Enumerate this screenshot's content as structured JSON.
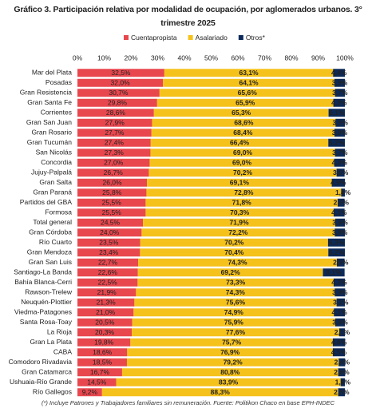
{
  "chart_data": {
    "type": "stacked-bar-horizontal",
    "title": "Gráfico 3. Participación relativa por modalidad de ocupación, por aglomerados urbanos. 3° trimestre 2025",
    "footnote": "(*) Incluye Patrones y Trabajadores familiares sin remuneración. Fuente: Politikon Chaco en base EPH-INDEC",
    "categories": [
      "Mar del Plata",
      "Posadas",
      "Gran Resistencia",
      "Gran Santa Fe",
      "Corrientes",
      "Gran San Juan",
      "Gran Rosario",
      "Gran Tucumán",
      "San Nicolás",
      "Concordia",
      "Jujuy-Palpalá",
      "Gran Salta",
      "Gran Paraná",
      "Partidos del GBA",
      "Formosa",
      "Total general",
      "Gran Córdoba",
      "Río Cuarto",
      "Gran Mendoza",
      "Gran San Luis",
      "Santiago-La Banda",
      "Bahía Blanca-Cerri",
      "Rawson-Trelew",
      "Neuquén-Plottier",
      "Viedma-Patagones",
      "Santa Rosa-Toay",
      "La Rioja",
      "Gran La Plata",
      "CABA",
      "Comodoro Rivadavia",
      "Gran Catamarca",
      "Ushuaia-Río Grande",
      "Río Gallegos"
    ],
    "series": [
      {
        "name": "Cuentapropista",
        "color": "#e8474e",
        "values": [
          32.5,
          32.0,
          30.7,
          29.8,
          28.6,
          27.9,
          27.7,
          27.4,
          27.3,
          27.0,
          26.7,
          26.0,
          25.8,
          25.5,
          25.5,
          24.5,
          24.0,
          23.5,
          23.4,
          22.7,
          22.6,
          22.5,
          21.9,
          21.3,
          21.0,
          20.5,
          20.3,
          19.8,
          18.6,
          18.5,
          16.7,
          14.5,
          9.2
        ],
        "value_labels": [
          "32,5%",
          "32,0%",
          "30,7%",
          "29,8%",
          "28,6%",
          "27,9%",
          "27,7%",
          "27,4%",
          "27,3%",
          "27,0%",
          "26,7%",
          "26,0%",
          "25,8%",
          "25,5%",
          "25,5%",
          "24,5%",
          "24,0%",
          "23,5%",
          "23,4%",
          "22,7%",
          "22,6%",
          "22,5%",
          "21,9%",
          "21,3%",
          "21,0%",
          "20,5%",
          "20,3%",
          "19,8%",
          "18,6%",
          "18,5%",
          "16,7%",
          "14,5%",
          "9,2%"
        ]
      },
      {
        "name": "Asalariado",
        "color": "#f5c21b",
        "values": [
          63.1,
          64.1,
          65.6,
          65.9,
          65.3,
          68.6,
          68.4,
          66.4,
          69.0,
          69.0,
          70.2,
          69.1,
          72.8,
          71.8,
          70.3,
          71.9,
          72.2,
          70.2,
          70.4,
          74.3,
          69.2,
          73.3,
          74.3,
          75.6,
          74.9,
          75.9,
          77.6,
          75.7,
          76.9,
          79.2,
          80.8,
          83.9,
          88.3
        ],
        "value_labels": [
          "63,1%",
          "64,1%",
          "65,6%",
          "65,9%",
          "65,3%",
          "68,6%",
          "68,4%",
          "66,4%",
          "69,0%",
          "69,0%",
          "70,2%",
          "69,1%",
          "72,8%",
          "71,8%",
          "70,3%",
          "71,9%",
          "72,2%",
          "70,2%",
          "70,4%",
          "74,3%",
          "69,2%",
          "73,3%",
          "74,3%",
          "75,6%",
          "74,9%",
          "75,9%",
          "77,6%",
          "75,7%",
          "76,9%",
          "79,2%",
          "80,8%",
          "83,9%",
          "88,3%"
        ]
      },
      {
        "name": "Otros*",
        "color": "#0b2a5b",
        "values": [
          4.4,
          3.9,
          3.7,
          4.3,
          6.1,
          3.5,
          3.9,
          6.2,
          3.7,
          4.0,
          3.0,
          4.9,
          1.4,
          2.6,
          4.1,
          3.6,
          3.8,
          6.3,
          6.2,
          2.9,
          8.1,
          4.2,
          3.9,
          3.1,
          4.1,
          3.6,
          2.1,
          4.6,
          4.5,
          2.4,
          2.6,
          1.6,
          2.5
        ],
        "value_labels": [
          "4,4%",
          "3,9%",
          "3,7%",
          "4,3%",
          "6,1%",
          "3,5%",
          "3,9%",
          "6,2%",
          "3,7%",
          "4,0%",
          "3,0%",
          "4,9%",
          "1,4%",
          "2,6%",
          "4,1%",
          "3,6%",
          "3,8%",
          "6,3%",
          "6,2%",
          "2,9%",
          "8,1%",
          "4,2%",
          "3,9%",
          "3,1%",
          "4,1%",
          "3,6%",
          "2,1%",
          "4,6%",
          "4,5%",
          "2,4%",
          "2,6%",
          "1,6%",
          "2,5%"
        ]
      }
    ],
    "xlim": [
      0,
      100
    ],
    "xticks": [
      {
        "value": 0,
        "label": "0%"
      },
      {
        "value": 10,
        "label": "10%"
      },
      {
        "value": 20,
        "label": "20%"
      },
      {
        "value": 30,
        "label": "30%"
      },
      {
        "value": 40,
        "label": "40%"
      },
      {
        "value": 50,
        "label": "50%"
      },
      {
        "value": 60,
        "label": "60%"
      },
      {
        "value": 70,
        "label": "70%"
      },
      {
        "value": 80,
        "label": "80%"
      },
      {
        "value": 90,
        "label": "90%"
      },
      {
        "value": 100,
        "label": "100%"
      }
    ],
    "legend": "top",
    "grid": false
  }
}
